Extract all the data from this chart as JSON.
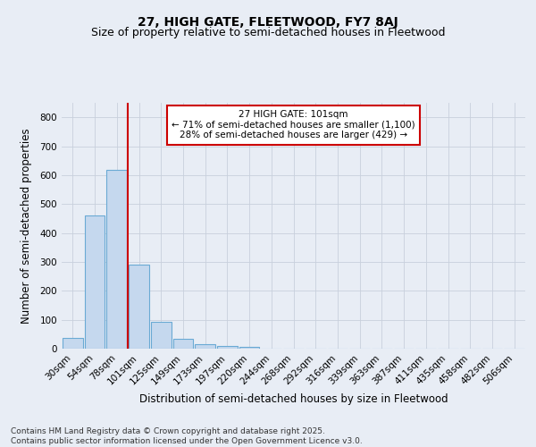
{
  "title": "27, HIGH GATE, FLEETWOOD, FY7 8AJ",
  "subtitle": "Size of property relative to semi-detached houses in Fleetwood",
  "xlabel": "Distribution of semi-detached houses by size in Fleetwood",
  "ylabel": "Number of semi-detached properties",
  "categories": [
    "30sqm",
    "54sqm",
    "78sqm",
    "101sqm",
    "125sqm",
    "149sqm",
    "173sqm",
    "197sqm",
    "220sqm",
    "244sqm",
    "268sqm",
    "292sqm",
    "316sqm",
    "339sqm",
    "363sqm",
    "387sqm",
    "411sqm",
    "435sqm",
    "458sqm",
    "482sqm",
    "506sqm"
  ],
  "values": [
    38,
    460,
    618,
    290,
    93,
    33,
    15,
    10,
    7,
    0,
    0,
    0,
    0,
    0,
    0,
    0,
    0,
    0,
    0,
    0,
    0
  ],
  "bar_color": "#c5d8ee",
  "bar_edge_color": "#6aaad4",
  "bar_edge_width": 0.8,
  "redline_index": 3,
  "annotation_line1": "27 HIGH GATE: 101sqm",
  "annotation_line2": "← 71% of semi-detached houses are smaller (1,100)",
  "annotation_line3": "28% of semi-detached houses are larger (429) →",
  "annotation_box_color": "#ffffff",
  "annotation_box_edge_color": "#cc0000",
  "redline_color": "#cc0000",
  "ylim": [
    0,
    850
  ],
  "yticks": [
    0,
    100,
    200,
    300,
    400,
    500,
    600,
    700,
    800
  ],
  "grid_color": "#c8d0dc",
  "background_color": "#e8edf5",
  "footer_line1": "Contains HM Land Registry data © Crown copyright and database right 2025.",
  "footer_line2": "Contains public sector information licensed under the Open Government Licence v3.0.",
  "title_fontsize": 10,
  "subtitle_fontsize": 9,
  "xlabel_fontsize": 8.5,
  "ylabel_fontsize": 8.5,
  "tick_fontsize": 7.5,
  "annotation_fontsize": 7.5,
  "footer_fontsize": 6.5
}
